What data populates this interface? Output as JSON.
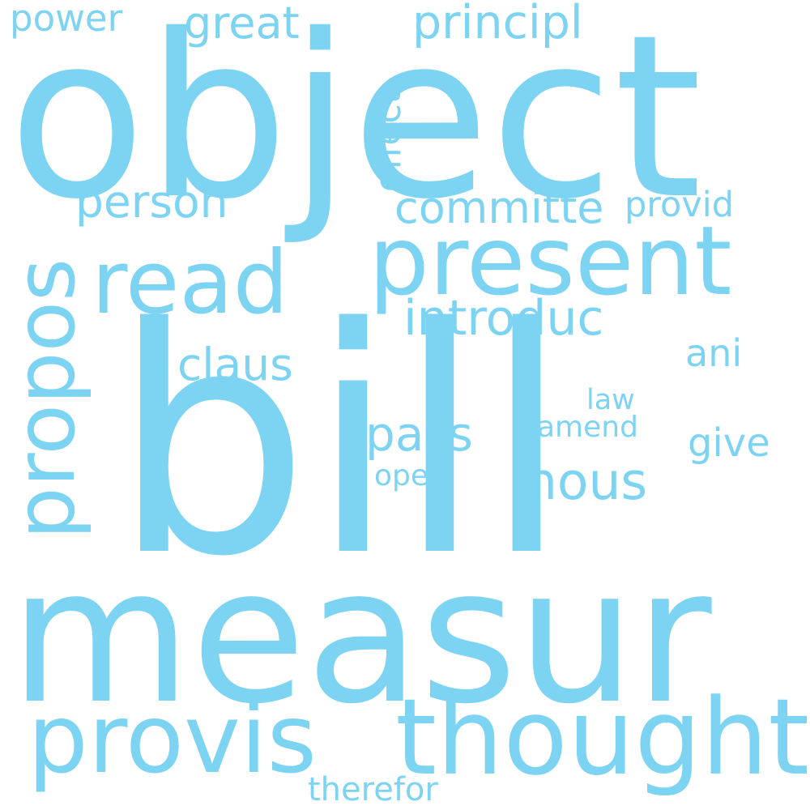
{
  "color": "#7dd3f2",
  "background": "#ffffff",
  "words": [
    {
      "id": "bill",
      "text": "bill"
    },
    {
      "id": "measur",
      "text": "measur"
    },
    {
      "id": "object",
      "text": "object"
    },
    {
      "id": "thought",
      "text": "thought"
    },
    {
      "id": "provis",
      "text": "provis"
    },
    {
      "id": "present",
      "text": "present"
    },
    {
      "id": "propos",
      "text": "propos"
    },
    {
      "id": "read",
      "text": "read"
    },
    {
      "id": "introduc",
      "text": "introduc"
    },
    {
      "id": "committe",
      "text": "committe"
    },
    {
      "id": "person",
      "text": "person"
    },
    {
      "id": "hous",
      "text": "hous"
    },
    {
      "id": "pass",
      "text": "pass"
    },
    {
      "id": "claus",
      "text": "claus"
    },
    {
      "id": "principl",
      "text": "principl"
    },
    {
      "id": "great",
      "text": "great"
    },
    {
      "id": "effect",
      "text": "effect"
    },
    {
      "id": "power",
      "text": "power"
    },
    {
      "id": "provid",
      "text": "provid"
    },
    {
      "id": "ani",
      "text": "ani"
    },
    {
      "id": "give",
      "text": "give"
    },
    {
      "id": "law",
      "text": "law"
    },
    {
      "id": "amend",
      "text": "amend"
    },
    {
      "id": "oper",
      "text": "oper"
    },
    {
      "id": "therefor",
      "text": "therefor"
    }
  ]
}
